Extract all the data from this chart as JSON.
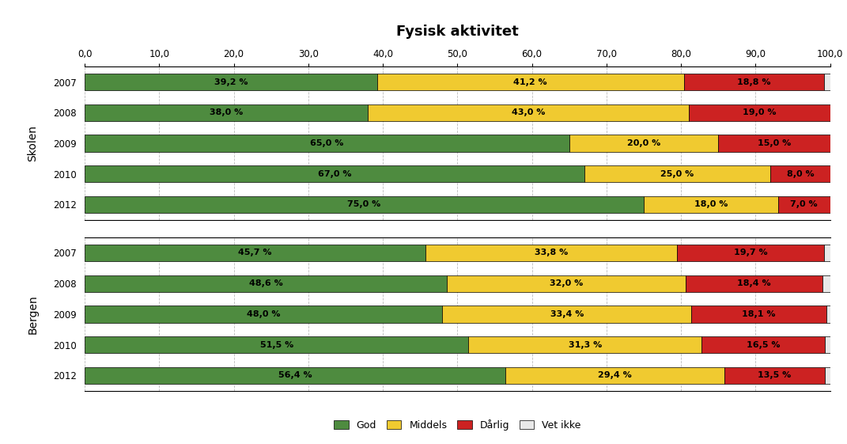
{
  "title": "Fysisk aktivitet",
  "title_fontsize": 13,
  "title_fontweight": "bold",
  "xlim": [
    0,
    100
  ],
  "xticks": [
    0.0,
    10.0,
    20.0,
    30.0,
    40.0,
    50.0,
    60.0,
    70.0,
    80.0,
    90.0,
    100.0
  ],
  "xticklabels": [
    "0,0",
    "10,0",
    "20,0",
    "30,0",
    "40,0",
    "50,0",
    "60,0",
    "70,0",
    "80,0",
    "90,0",
    "100,0"
  ],
  "group_labels": [
    "Skolen",
    "Bergen"
  ],
  "years": [
    "2007",
    "2008",
    "2009",
    "2010",
    "2012"
  ],
  "skolen_data": {
    "2007": {
      "god": 39.2,
      "middels": 41.2,
      "darlig": 18.8,
      "vet_ikke": 0.8
    },
    "2008": {
      "god": 38.0,
      "middels": 43.0,
      "darlig": 19.0,
      "vet_ikke": 0.0
    },
    "2009": {
      "god": 65.0,
      "middels": 20.0,
      "darlig": 15.0,
      "vet_ikke": 0.0
    },
    "2010": {
      "god": 67.0,
      "middels": 25.0,
      "darlig": 8.0,
      "vet_ikke": 0.0
    },
    "2012": {
      "god": 75.0,
      "middels": 18.0,
      "darlig": 7.0,
      "vet_ikke": 0.0
    }
  },
  "bergen_data": {
    "2007": {
      "god": 45.7,
      "middels": 33.8,
      "darlig": 19.7,
      "vet_ikke": 0.8
    },
    "2008": {
      "god": 48.6,
      "middels": 32.0,
      "darlig": 18.4,
      "vet_ikke": 1.0
    },
    "2009": {
      "god": 48.0,
      "middels": 33.4,
      "darlig": 18.1,
      "vet_ikke": 0.5
    },
    "2010": {
      "god": 51.5,
      "middels": 31.3,
      "darlig": 16.5,
      "vet_ikke": 0.7
    },
    "2012": {
      "god": 56.4,
      "middels": 29.4,
      "darlig": 13.5,
      "vet_ikke": 0.7
    }
  },
  "colors": {
    "god": "#4e8b3f",
    "middels": "#f0ca30",
    "darlig": "#cc2222",
    "vet_ikke": "#e8e8e8"
  },
  "bar_height": 0.55,
  "background_color": "#ffffff",
  "grid_color": "#bbbbbb",
  "label_fontsize": 8,
  "grouplabel_fontsize": 10,
  "tick_fontsize": 8.5
}
